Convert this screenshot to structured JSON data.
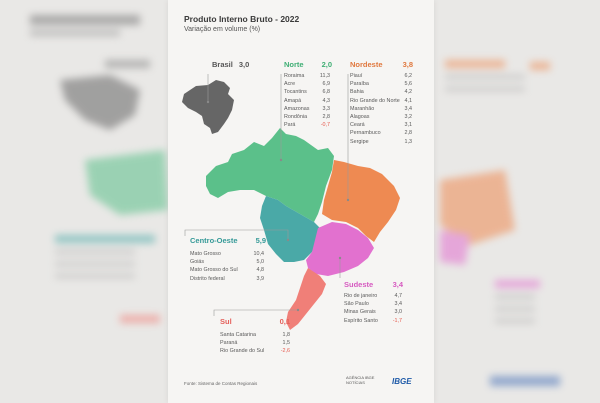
{
  "title": "Produto Interno Bruto - 2022",
  "subtitle": "Variação em volume (%)",
  "brasil": {
    "name": "Brasil",
    "value": "3,0"
  },
  "regions": {
    "norte": {
      "name": "Norte",
      "value": "2,0",
      "color": "#5bc08a",
      "states": [
        {
          "name": "Roraima",
          "value": "11,3",
          "neg": false
        },
        {
          "name": "Acre",
          "value": "6,9",
          "neg": false
        },
        {
          "name": "Tocantins",
          "value": "6,8",
          "neg": false
        },
        {
          "name": "Amapá",
          "value": "4,3",
          "neg": false
        },
        {
          "name": "Amazonas",
          "value": "3,3",
          "neg": false
        },
        {
          "name": "Rondônia",
          "value": "2,8",
          "neg": false
        },
        {
          "name": "Pará",
          "value": "-0,7",
          "neg": true
        }
      ]
    },
    "nordeste": {
      "name": "Nordeste",
      "value": "3,8",
      "color": "#ee8a52",
      "states": [
        {
          "name": "Piauí",
          "value": "6,2",
          "neg": false
        },
        {
          "name": "Paraíba",
          "value": "5,6",
          "neg": false
        },
        {
          "name": "Bahia",
          "value": "4,2",
          "neg": false
        },
        {
          "name": "Rio Grande do Norte",
          "value": "4,1",
          "neg": false
        },
        {
          "name": "Maranhão",
          "value": "3,4",
          "neg": false
        },
        {
          "name": "Alagoas",
          "value": "3,2",
          "neg": false
        },
        {
          "name": "Ceará",
          "value": "3,1",
          "neg": false
        },
        {
          "name": "Pernambuco",
          "value": "2,8",
          "neg": false
        },
        {
          "name": "Sergipe",
          "value": "1,3",
          "neg": false
        }
      ]
    },
    "centro_oeste": {
      "name": "Centro-Oeste",
      "value": "5,9",
      "color": "#4aa9a7",
      "states": [
        {
          "name": "Mato Grosso",
          "value": "10,4",
          "neg": false
        },
        {
          "name": "Goiás",
          "value": "5,0",
          "neg": false
        },
        {
          "name": "Mato Grosso do Sul",
          "value": "4,8",
          "neg": false
        },
        {
          "name": "Distrito federal",
          "value": "3,9",
          "neg": false
        }
      ]
    },
    "sudeste": {
      "name": "Sudeste",
      "value": "3,4",
      "color": "#e271cf",
      "states": [
        {
          "name": "Rio de janeiro",
          "value": "4,7",
          "neg": false
        },
        {
          "name": "São Paulo",
          "value": "3,4",
          "neg": false
        },
        {
          "name": "Minas Gerais",
          "value": "3,0",
          "neg": false
        },
        {
          "name": "Espírito Santo",
          "value": "-1,7",
          "neg": true
        }
      ]
    },
    "sul": {
      "name": "Sul",
      "value": "0,1",
      "color": "#f07f78",
      "states": [
        {
          "name": "Santa Catarina",
          "value": "1,8",
          "neg": false
        },
        {
          "name": "Paraná",
          "value": "1,5",
          "neg": false
        },
        {
          "name": "Rio Grande do Sul",
          "value": "-2,6",
          "neg": true
        }
      ]
    }
  },
  "colors": {
    "brasil": "#666666",
    "negative": "#e65a4f"
  },
  "source": "Fonte: Sistema de Contas Regionais",
  "logos": {
    "agencia": "AGÊNCIA IBGE",
    "agencia_sub": "NOTÍCIAS",
    "ibge": "IBGE"
  },
  "icons": [
    "brasil-map-icon",
    "brazil-regions-map-icon"
  ]
}
